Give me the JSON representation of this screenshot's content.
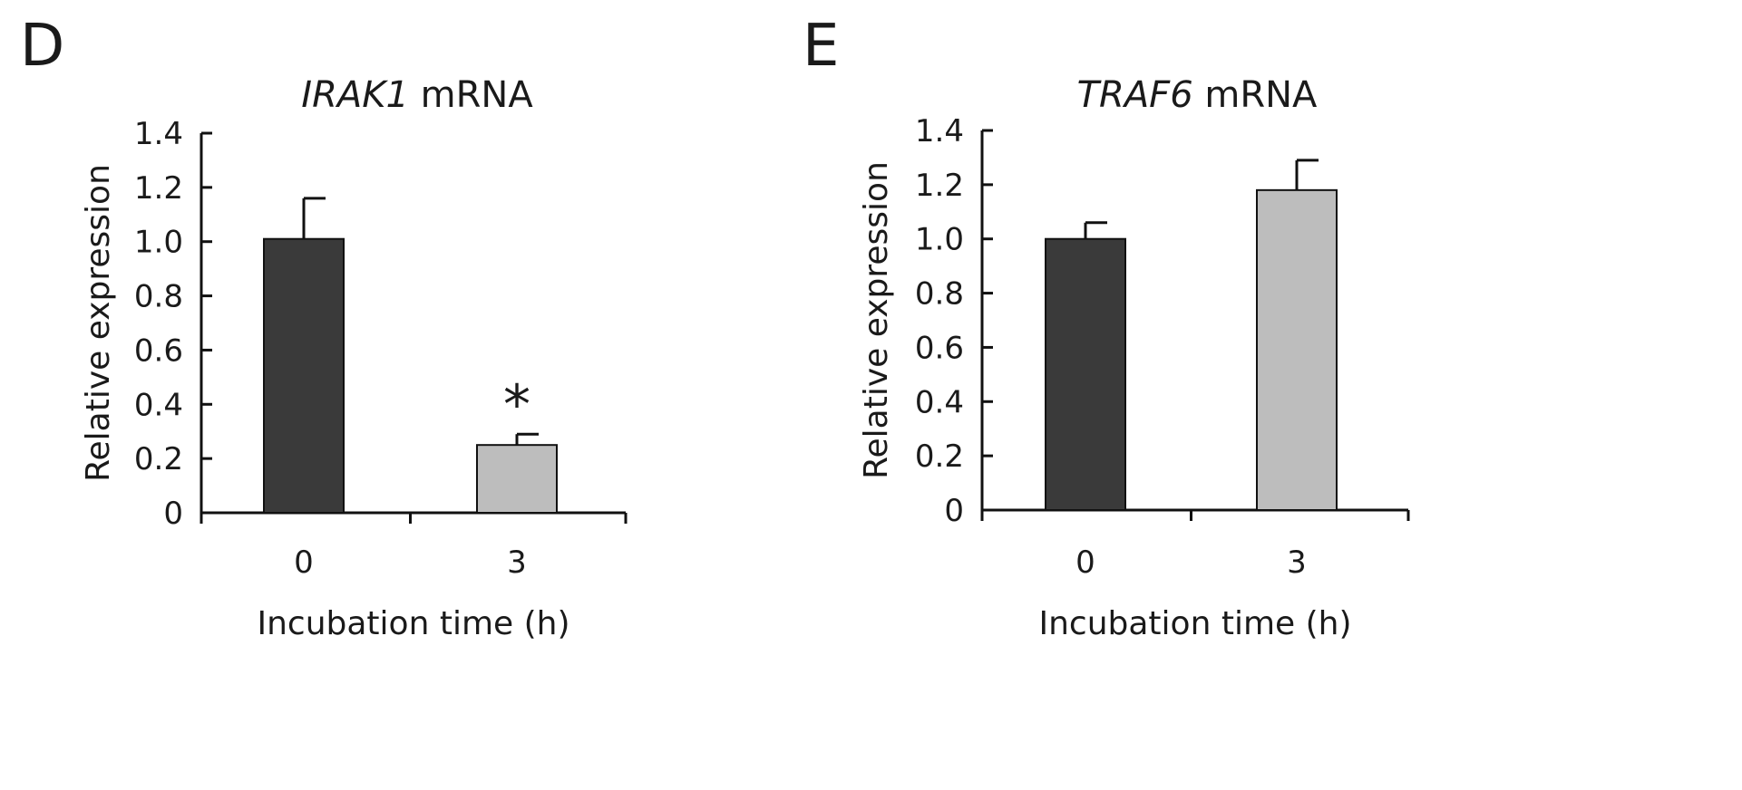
{
  "chart_data": [
    {
      "type": "bar",
      "panel_label": "D",
      "title_gene": "IRAK1",
      "title_rest": "mRNA",
      "categories": [
        "0",
        "3"
      ],
      "values": [
        1.01,
        0.25
      ],
      "error": [
        0.15,
        0.04
      ],
      "bar_colors": [
        "#3a3a3a",
        "#bdbdbd"
      ],
      "annotations": [
        "",
        "*"
      ],
      "ylim": [
        0,
        1.4
      ],
      "yticks": [
        "0",
        "0.2",
        "0.4",
        "0.6",
        "0.8",
        "1.0",
        "1.2",
        "1.4"
      ],
      "xlabel": "Incubation time (h)",
      "ylabel": "Relative expression"
    },
    {
      "type": "bar",
      "panel_label": "E",
      "title_gene": "TRAF6",
      "title_rest": "mRNA",
      "categories": [
        "0",
        "3"
      ],
      "values": [
        1.0,
        1.18
      ],
      "error": [
        0.06,
        0.11
      ],
      "bar_colors": [
        "#3a3a3a",
        "#bdbdbd"
      ],
      "annotations": [
        "",
        ""
      ],
      "ylim": [
        0,
        1.4
      ],
      "yticks": [
        "0",
        "0.2",
        "0.4",
        "0.6",
        "0.8",
        "1.0",
        "1.2",
        "1.4"
      ],
      "xlabel": "Incubation time (h)",
      "ylabel": "Relative expression"
    }
  ]
}
